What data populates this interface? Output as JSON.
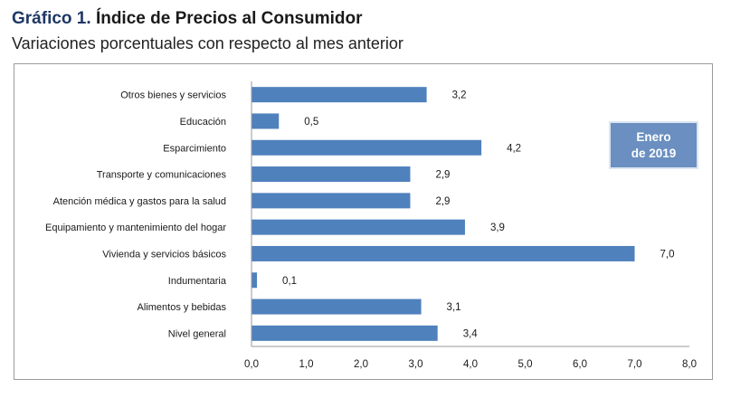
{
  "header": {
    "title_prefix": "Gráfico 1.",
    "title_main": "Índice de Precios al Consumidor",
    "subtitle": "Variaciones porcentuales con respecto al mes anterior"
  },
  "annotation": {
    "line1": "Enero",
    "line2": "de 2019"
  },
  "colors": {
    "bar": "#4f81bd",
    "title_accent": "#1f3864",
    "annotation_fill": "#6a8fc0"
  },
  "chart_data": {
    "type": "bar",
    "orientation": "horizontal",
    "title": "Gráfico 1. Índice de Precios al Consumidor",
    "subtitle": "Variaciones porcentuales con respecto al mes anterior",
    "categories": [
      "Otros bienes y servicios",
      "Educación",
      "Esparcimiento",
      "Transporte y comunicaciones",
      "Atención médica y gastos para la salud",
      "Equipamiento y  mantenimiento del hogar",
      "Vivienda y servicios básicos",
      "Indumentaria",
      "Alimentos y bebidas",
      "Nivel  general"
    ],
    "values": [
      3.2,
      0.5,
      4.2,
      2.9,
      2.9,
      3.9,
      7.0,
      0.1,
      3.1,
      3.4
    ],
    "value_labels": [
      "3,2",
      "0,5",
      "4,2",
      "2,9",
      "2,9",
      "3,9",
      "7,0",
      "0,1",
      "3,1",
      "3,4"
    ],
    "xlim": [
      0,
      8
    ],
    "xticks": [
      0,
      1,
      2,
      3,
      4,
      5,
      6,
      7,
      8
    ],
    "xtick_labels": [
      "0,0",
      "1,0",
      "2,0",
      "3,0",
      "4,0",
      "5,0",
      "6,0",
      "7,0",
      "8,0"
    ],
    "xlabel": "",
    "ylabel": "",
    "grid": false,
    "legend": "none",
    "annotation": "Enero de 2019"
  }
}
